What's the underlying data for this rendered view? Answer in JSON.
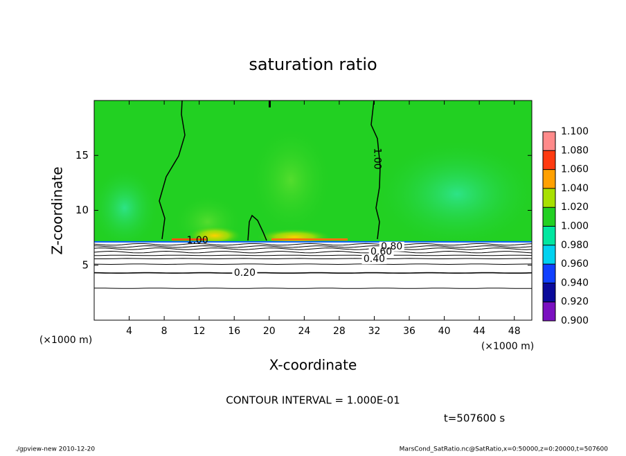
{
  "chart_data": {
    "type": "contour",
    "title": "saturation ratio",
    "xlabel": "X-coordinate",
    "ylabel": "Z-coordinate",
    "xunit": "(×1000 m)",
    "xlim": [
      0,
      50
    ],
    "ylim": [
      0,
      20
    ],
    "xticks": [
      4,
      8,
      12,
      16,
      20,
      24,
      28,
      32,
      36,
      40,
      44,
      48
    ],
    "yticks": [
      5,
      10,
      15
    ],
    "contours": [
      {
        "level": 0.1,
        "z": 2.9
      },
      {
        "level": 0.2,
        "z": 4.3
      },
      {
        "level": 0.3,
        "z": 5.1
      },
      {
        "level": 0.4,
        "z": 5.6
      },
      {
        "level": 0.5,
        "z": 5.9
      },
      {
        "level": 0.6,
        "z": 6.2
      },
      {
        "level": 0.7,
        "z": 6.5
      },
      {
        "level": 0.8,
        "z": 6.7
      },
      {
        "level": 0.9,
        "z": 6.9
      }
    ],
    "contour_labels": [
      {
        "text": "0.20",
        "x": 17.2,
        "z": 4.3
      },
      {
        "text": "0.40",
        "x": 32.0,
        "z": 5.55
      },
      {
        "text": "0.60",
        "x": 32.8,
        "z": 6.2
      },
      {
        "text": "0.80",
        "x": 34.0,
        "z": 6.7
      },
      {
        "text": "1.00",
        "x": 11.8,
        "z": 7.25
      },
      {
        "text": "1.00",
        "x": 32.3,
        "z": 14.7,
        "angle": 90
      }
    ],
    "colorbar": {
      "ticks": [
        {
          "value": 0.9,
          "label": "0.900"
        },
        {
          "value": 0.92,
          "label": "0.920"
        },
        {
          "value": 0.94,
          "label": "0.940"
        },
        {
          "value": 0.96,
          "label": "0.960"
        },
        {
          "value": 0.98,
          "label": "0.980"
        },
        {
          "value": 1.0,
          "label": "1.000"
        },
        {
          "value": 1.02,
          "label": "1.020"
        },
        {
          "value": 1.04,
          "label": "1.040"
        },
        {
          "value": 1.06,
          "label": "1.060"
        },
        {
          "value": 1.08,
          "label": "1.080"
        },
        {
          "value": 1.1,
          "label": "1.100"
        }
      ],
      "colors": [
        "#7a10c0",
        "#0a0a9a",
        "#1040ff",
        "#00d2f0",
        "#00e6a0",
        "#22d022",
        "#a8e000",
        "#ffa000",
        "#ff3a10",
        "#ff8a8a"
      ]
    },
    "annotations": {
      "interval": "CONTOUR INTERVAL = 1.000E-01",
      "time": "t=507600 s",
      "footer_left": "./gpview-new  2010-12-20",
      "footer_right": "MarsCond_SatRatio.nc@SatRatio,x=0:50000,z=0:20000,t=507600"
    }
  }
}
